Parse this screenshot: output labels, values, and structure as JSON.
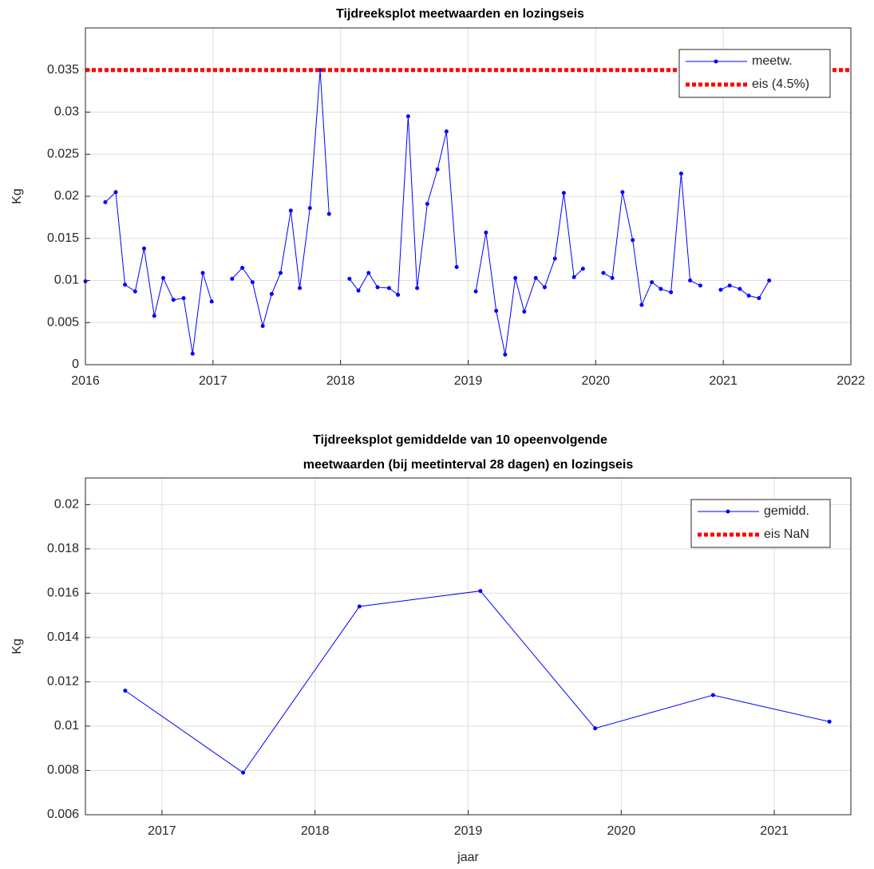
{
  "chart_data": [
    {
      "type": "line",
      "title": [
        "Tijdreeksplot meetwaarden en lozingseis"
      ],
      "ylabel": "Kg",
      "xlim": [
        2016,
        2022
      ],
      "xticks": [
        2016,
        2017,
        2018,
        2019,
        2020,
        2021,
        2022
      ],
      "ylim": [
        0,
        0.04
      ],
      "yticks": [
        0,
        0.005,
        0.01,
        0.015,
        0.02,
        0.025,
        0.03,
        0.035
      ],
      "grid": true,
      "legend": "upper right",
      "series": [
        {
          "name": "meetw.",
          "color": "#0000ff",
          "style": "solid-dots",
          "x": [
            2016.0,
            null,
            2016.156,
            2016.238,
            2016.31,
            2016.39,
            2016.46,
            2016.54,
            2016.61,
            2016.69,
            2016.77,
            2016.84,
            2016.92,
            2016.99,
            null,
            2017.15,
            2017.23,
            2017.31,
            2017.39,
            2017.46,
            2017.53,
            2017.61,
            2017.68,
            2017.76,
            2017.84,
            2017.91,
            null,
            2018.07,
            2018.14,
            2018.22,
            2018.29,
            2018.38,
            2018.45,
            2018.53,
            2018.6,
            2018.68,
            2018.76,
            2018.83,
            2018.91,
            null,
            2019.06,
            2019.14,
            2019.22,
            2019.29,
            2019.37,
            2019.44,
            2019.53,
            2019.6,
            2019.68,
            2019.75,
            2019.83,
            2019.9,
            null,
            2020.06,
            2020.13,
            2020.21,
            2020.29,
            2020.36,
            2020.44,
            2020.51,
            2020.59,
            2020.67,
            2020.74,
            2020.82,
            null,
            2020.98,
            2021.05,
            2021.13,
            2021.2,
            2021.28,
            2021.36
          ],
          "values": [
            0.0099,
            null,
            0.0193,
            0.0205,
            0.0095,
            0.0087,
            0.0138,
            0.0058,
            0.0103,
            0.0077,
            0.0079,
            0.0013,
            0.0109,
            0.0075,
            null,
            0.0102,
            0.0115,
            0.0098,
            0.0046,
            0.0084,
            0.0109,
            0.0183,
            0.0091,
            0.0186,
            0.035,
            0.0179,
            null,
            0.0102,
            0.0088,
            0.0109,
            0.0092,
            0.0091,
            0.0083,
            0.0295,
            0.0091,
            0.0191,
            0.0232,
            0.0277,
            0.0116,
            null,
            0.0087,
            0.0157,
            0.0064,
            0.0012,
            0.0103,
            0.0063,
            0.0103,
            0.0092,
            0.0126,
            0.0204,
            0.0104,
            0.0114,
            null,
            0.0109,
            0.0103,
            0.0205,
            0.0148,
            0.0071,
            0.0098,
            0.009,
            0.0086,
            0.0227,
            0.01,
            0.0094,
            null,
            0.0089,
            0.0094,
            0.009,
            0.0082,
            0.0079,
            0.01
          ]
        },
        {
          "name": "eis (4.5%)",
          "color": "#ff0000",
          "style": "dotted",
          "x": [
            2016,
            2022
          ],
          "values": [
            0.035,
            0.035
          ]
        }
      ]
    },
    {
      "type": "line",
      "title": [
        "Tijdreeksplot gemiddelde van 10 opeenvolgende",
        "meetwaarden (bij meetinterval 28 dagen) en lozingseis"
      ],
      "ylabel": "Kg",
      "xlabel": "jaar",
      "xlim": [
        2016.5,
        2021.5
      ],
      "xticks": [
        2017,
        2018,
        2019,
        2020,
        2021
      ],
      "ylim": [
        0.006,
        0.0212
      ],
      "yticks": [
        0.006,
        0.008,
        0.01,
        0.012,
        0.014,
        0.016,
        0.018,
        0.02
      ],
      "grid": true,
      "legend": "upper right",
      "series": [
        {
          "name": "gemidd.",
          "color": "#0000ff",
          "style": "solid-dots",
          "x": [
            2016.76,
            2017.53,
            2018.29,
            2019.08,
            2019.83,
            2020.6,
            2021.36
          ],
          "values": [
            0.0116,
            0.0079,
            0.0154,
            0.0161,
            0.0099,
            0.0114,
            0.0102
          ]
        },
        {
          "name": "eis NaN",
          "color": "#ff0000",
          "style": "dotted"
        }
      ]
    }
  ]
}
